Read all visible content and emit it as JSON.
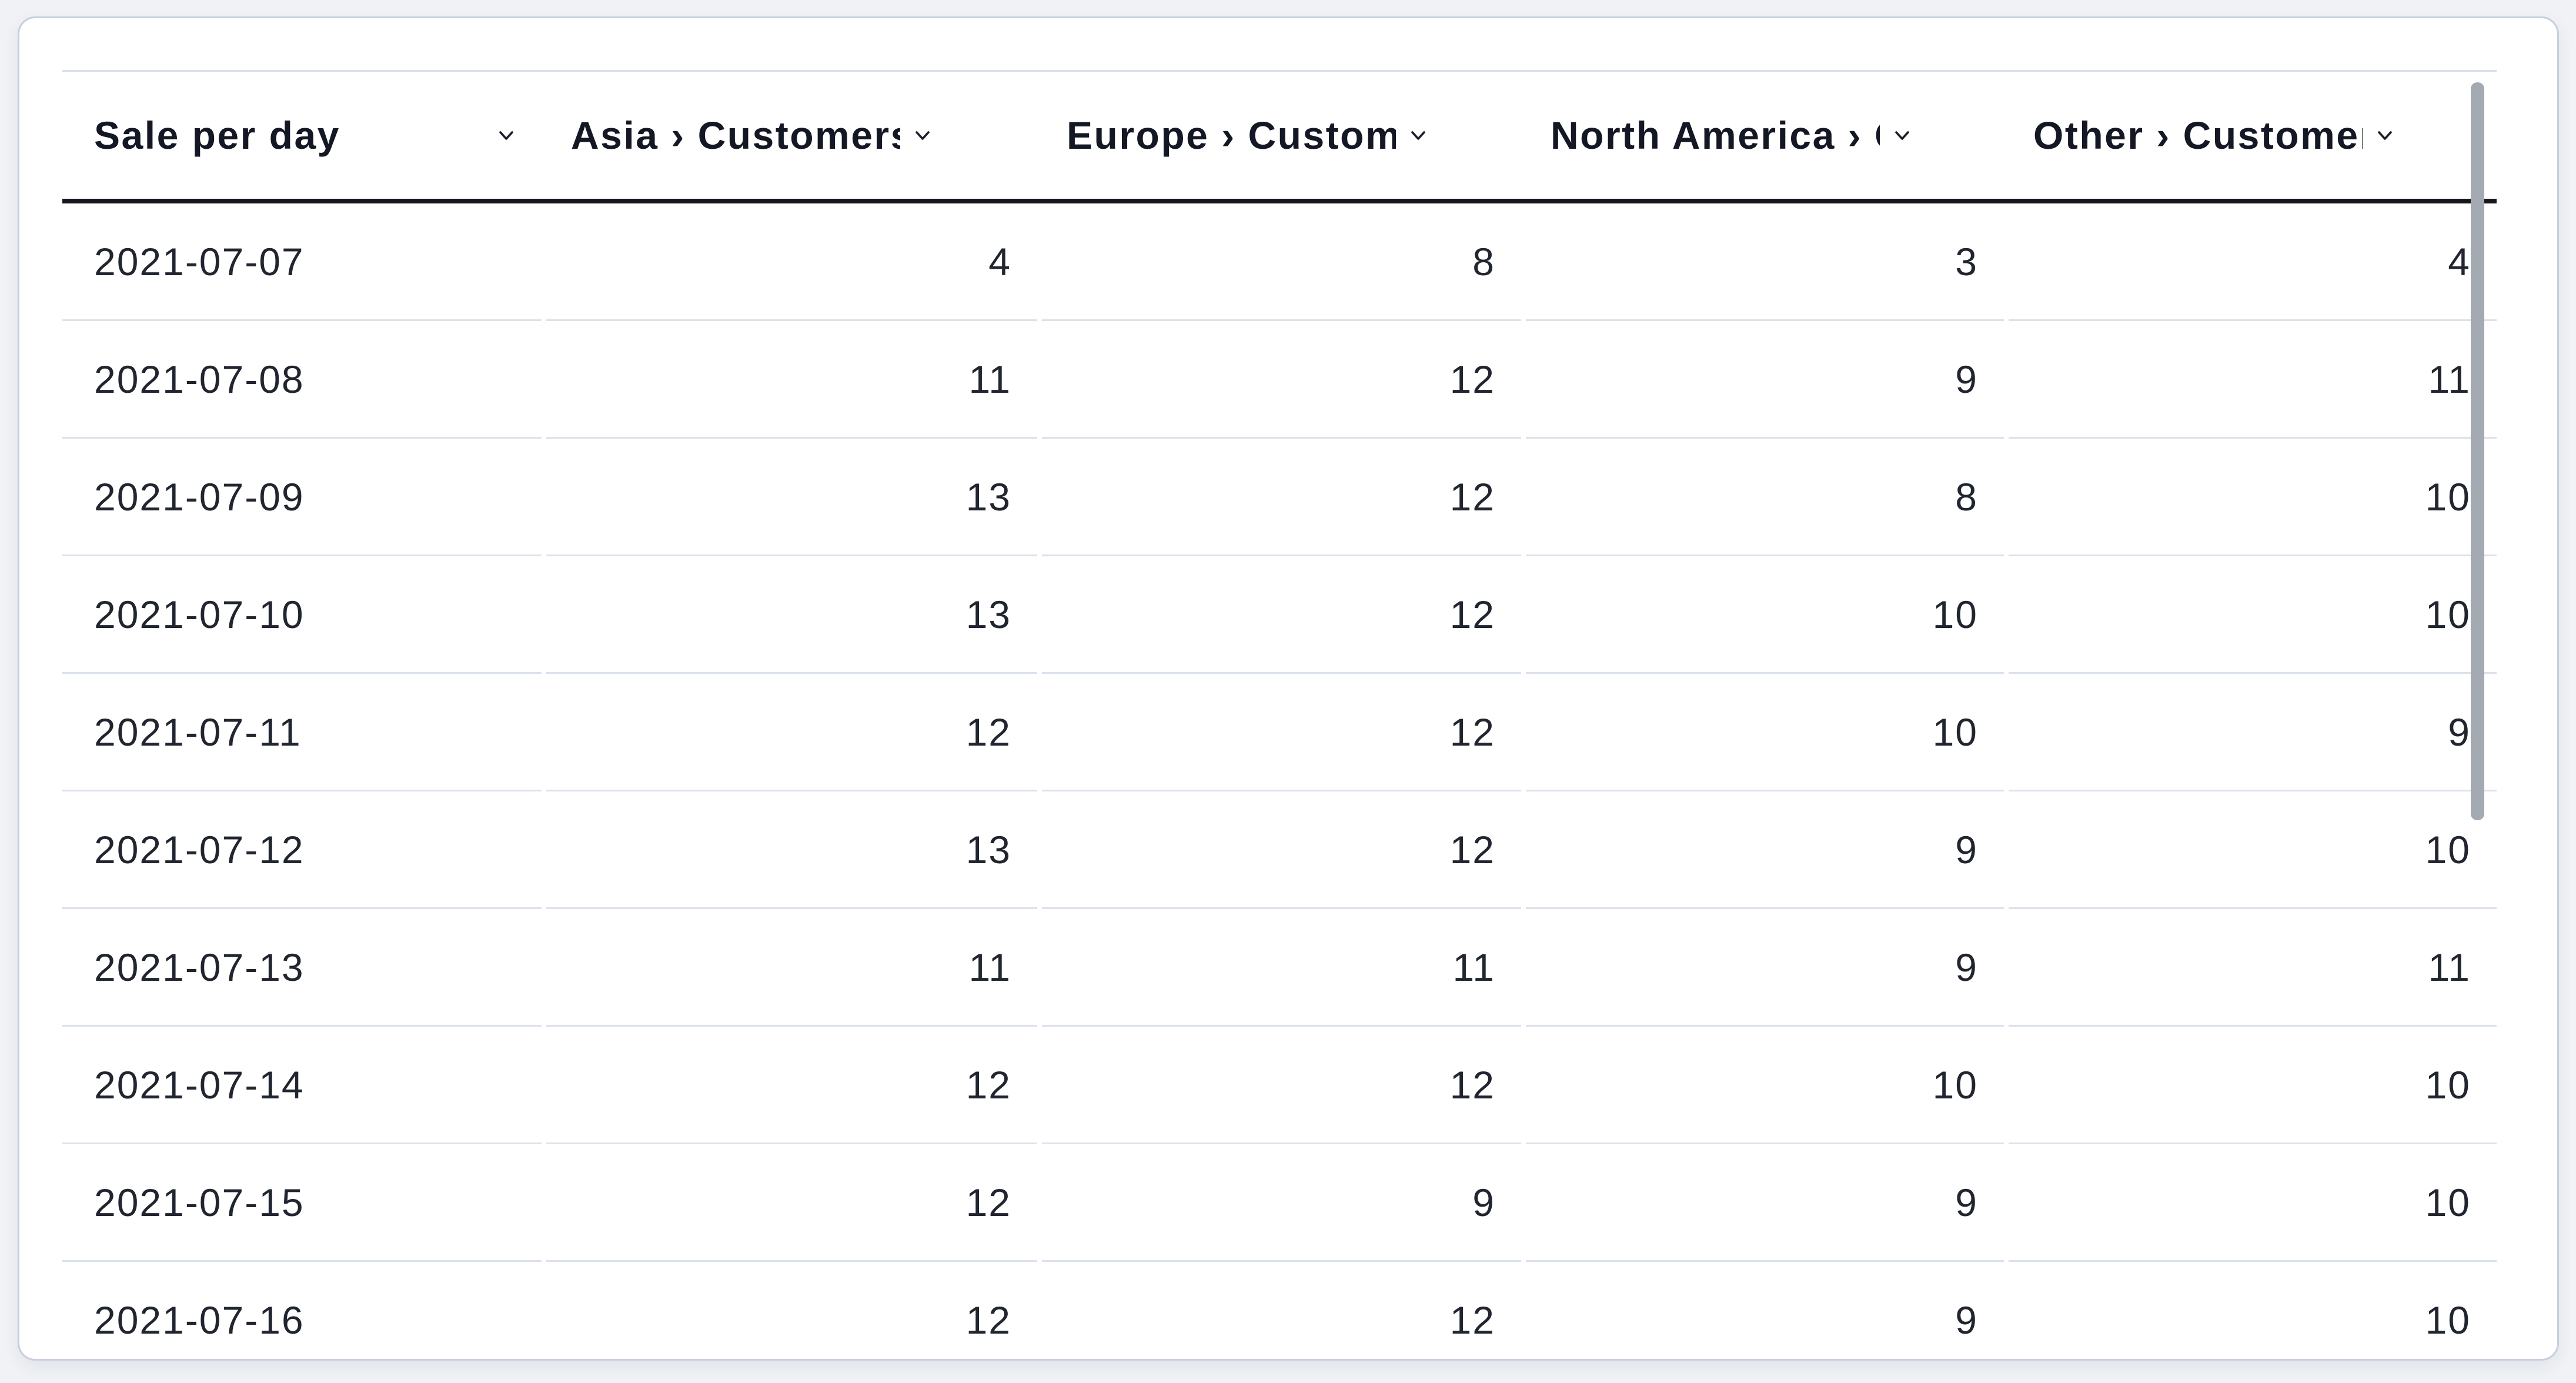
{
  "panel": {
    "title": "Sale per day",
    "type": "table"
  },
  "table": {
    "columns": [
      {
        "label": "Sale per day",
        "icon": "chevron-down"
      },
      {
        "label": "Asia › Customers",
        "icon": "chevron-down"
      },
      {
        "label": "Europe › Customers",
        "icon": "chevron-down"
      },
      {
        "label": "North America › Customers",
        "icon": "chevron-down"
      },
      {
        "label": "Other › Customers",
        "icon": "chevron-down"
      }
    ],
    "rows": [
      {
        "date": "2021-07-07",
        "values": [
          4,
          8,
          3,
          4
        ]
      },
      {
        "date": "2021-07-08",
        "values": [
          11,
          12,
          9,
          11
        ]
      },
      {
        "date": "2021-07-09",
        "values": [
          13,
          12,
          8,
          10
        ]
      },
      {
        "date": "2021-07-10",
        "values": [
          13,
          12,
          10,
          10
        ]
      },
      {
        "date": "2021-07-11",
        "values": [
          12,
          12,
          10,
          9
        ]
      },
      {
        "date": "2021-07-12",
        "values": [
          13,
          12,
          9,
          10
        ]
      },
      {
        "date": "2021-07-13",
        "values": [
          11,
          11,
          9,
          11
        ]
      },
      {
        "date": "2021-07-14",
        "values": [
          12,
          12,
          10,
          10
        ]
      },
      {
        "date": "2021-07-15",
        "values": [
          12,
          9,
          9,
          10
        ]
      },
      {
        "date": "2021-07-16",
        "values": [
          12,
          12,
          9,
          10
        ]
      }
    ]
  },
  "scrollbar": {
    "orientation": "vertical",
    "visible": true
  },
  "colors": {
    "page_background": "#f0f2f6",
    "card_background": "#ffffff",
    "card_border": "#c6d0dd",
    "header_text": "#141824",
    "cell_text": "#20252f",
    "header_rule": "#15171c",
    "row_rule": "#dce2eb",
    "scrollbar_thumb": "#a4aab2"
  }
}
